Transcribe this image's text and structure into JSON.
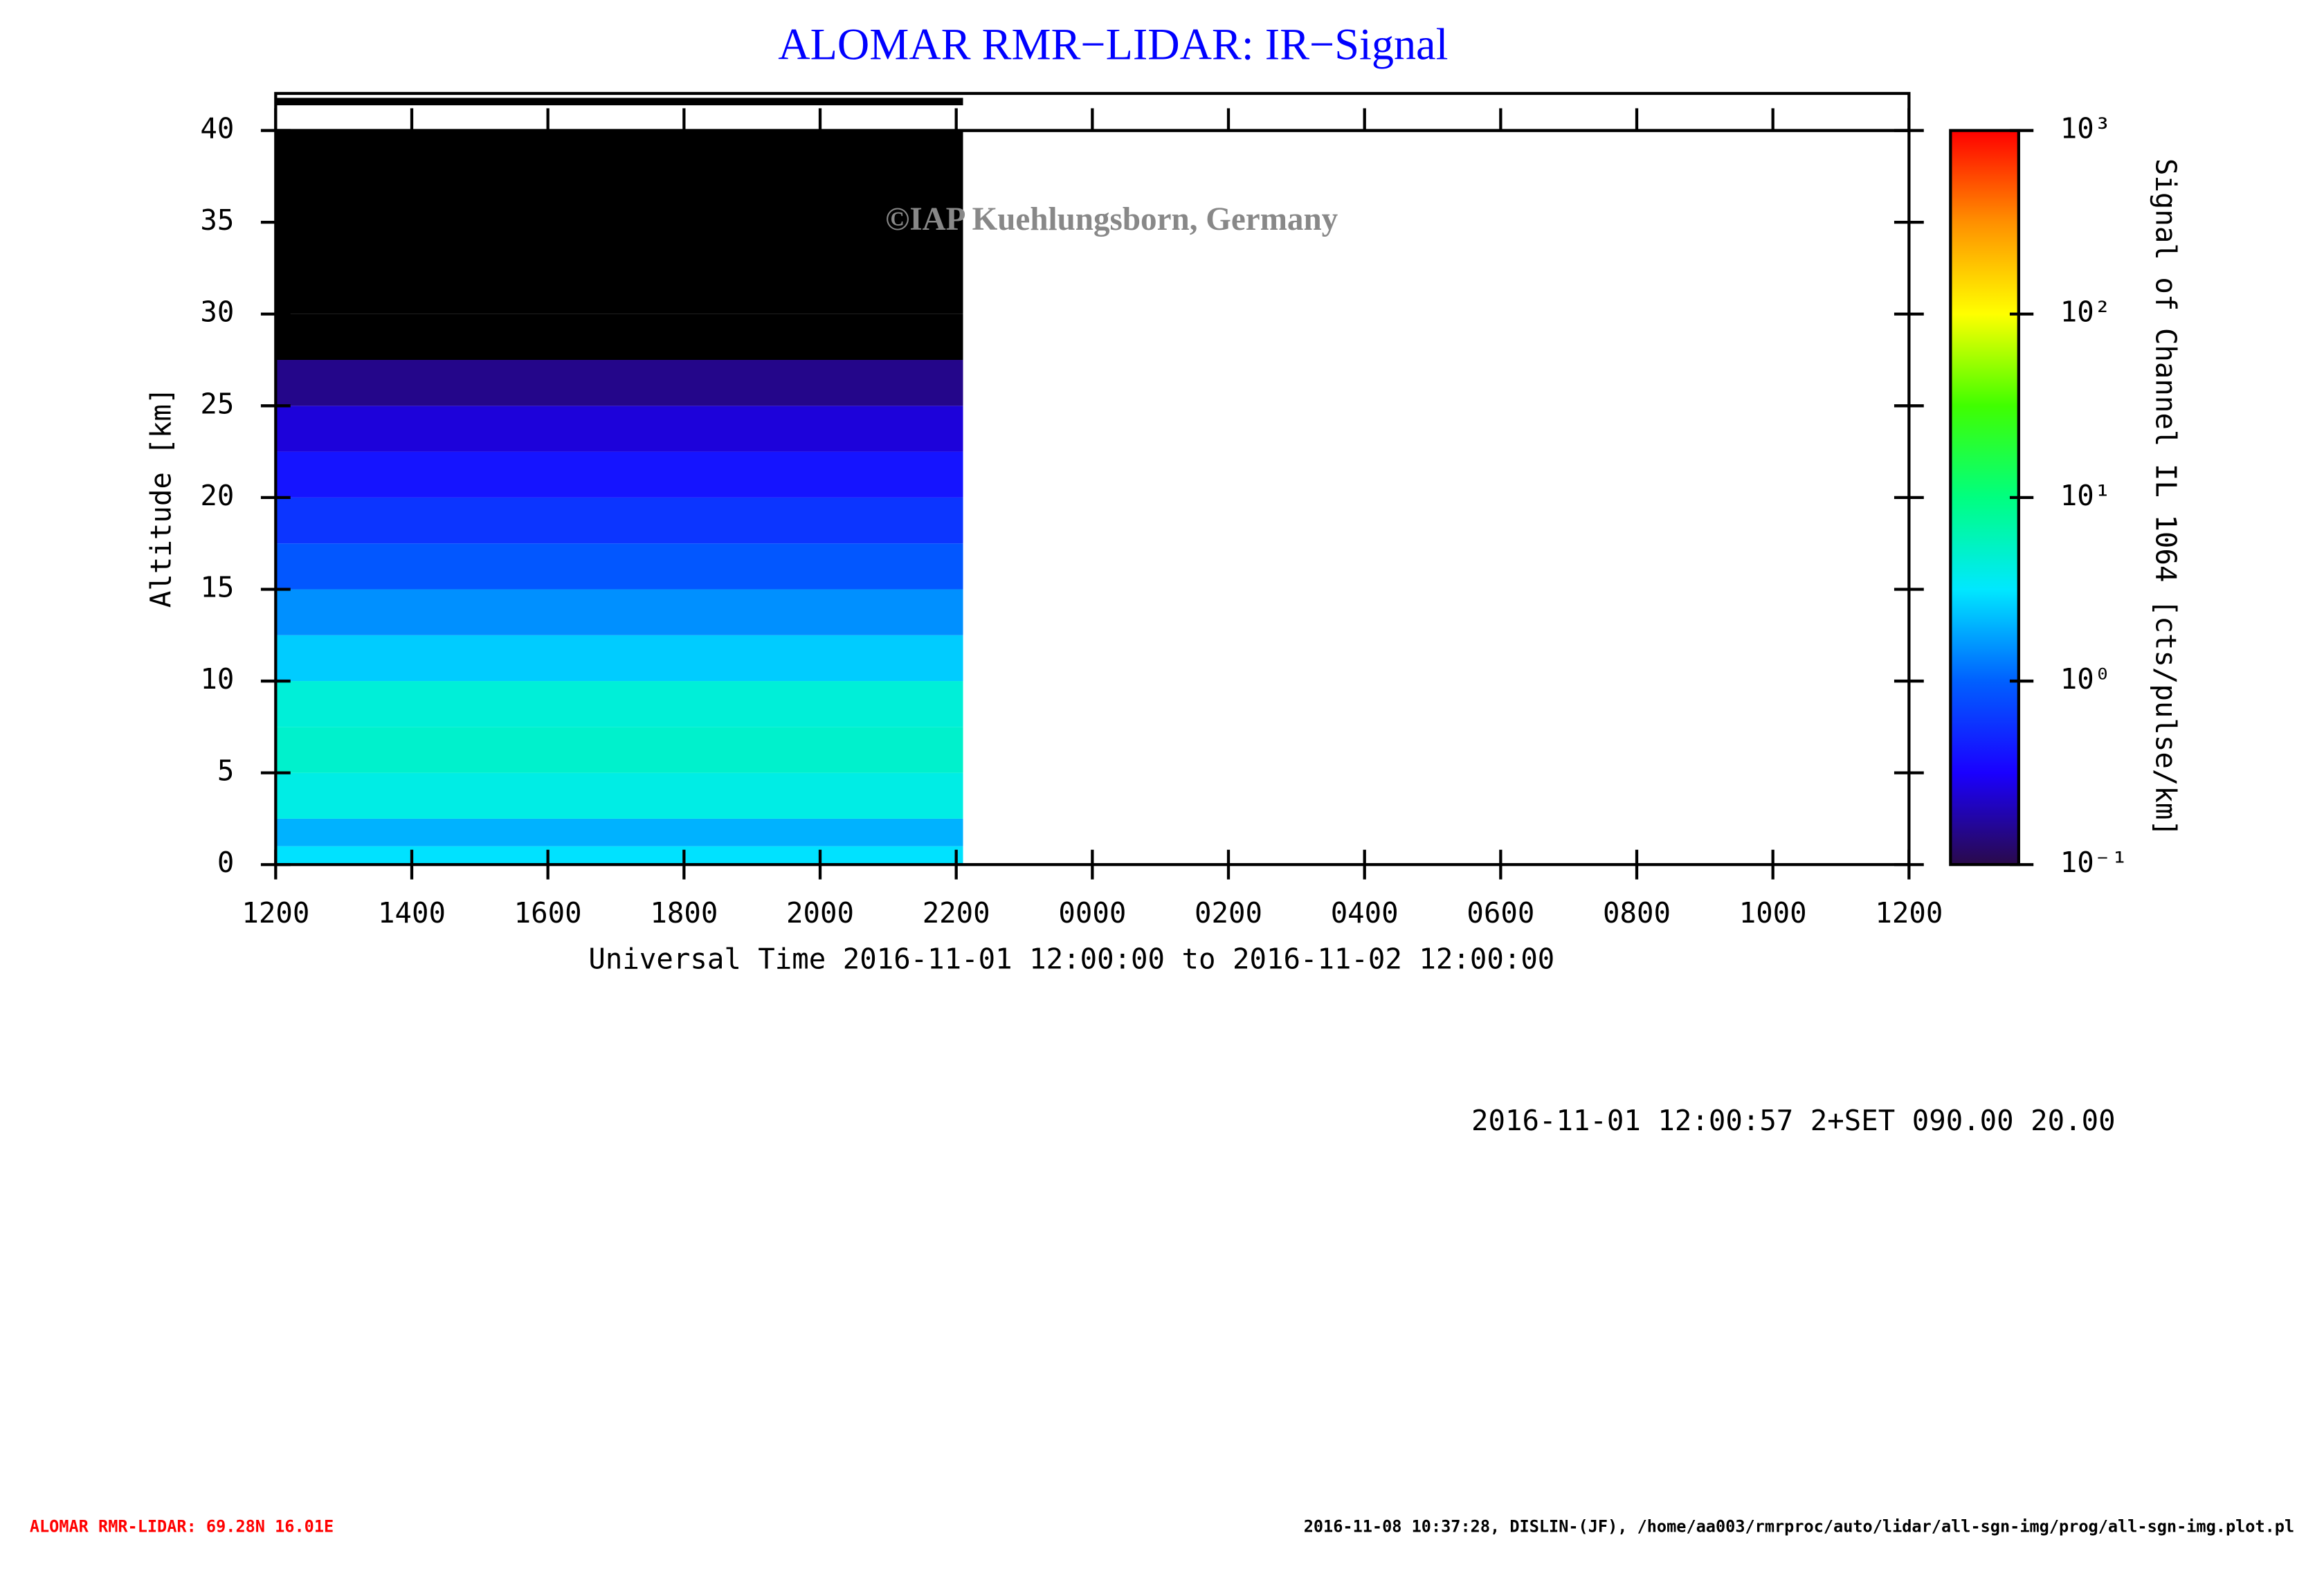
{
  "chart_data": {
    "type": "heatmap",
    "title": "ALOMAR RMR−LIDAR: IR−Signal",
    "watermark": "©IAP Kuehlungsborn, Germany",
    "x_label": "Universal Time 2016-11-01 12:00:00 to 2016-11-02 12:00:00",
    "y_label": "Altitude [km]",
    "colorbar_label": "Signal of Channel IL 1064 [cts/pulse/km]",
    "xlim": [
      12,
      36
    ],
    "xticks": [
      {
        "value": 12,
        "label": "1200"
      },
      {
        "value": 14,
        "label": "1400"
      },
      {
        "value": 16,
        "label": "1600"
      },
      {
        "value": 18,
        "label": "1800"
      },
      {
        "value": 20,
        "label": "2000"
      },
      {
        "value": 22,
        "label": "2200"
      },
      {
        "value": 24,
        "label": "0000"
      },
      {
        "value": 26,
        "label": "0200"
      },
      {
        "value": 28,
        "label": "0400"
      },
      {
        "value": 30,
        "label": "0600"
      },
      {
        "value": 32,
        "label": "0800"
      },
      {
        "value": 34,
        "label": "1000"
      },
      {
        "value": 36,
        "label": "1200"
      }
    ],
    "ylim": [
      0,
      40
    ],
    "yticks": [
      0,
      5,
      10,
      15,
      20,
      25,
      30,
      35,
      40
    ],
    "clim": [
      0.1,
      1000
    ],
    "cticks": [
      {
        "value": 0.1,
        "label": "10⁻¹"
      },
      {
        "value": 1,
        "label": "10⁰"
      },
      {
        "value": 10,
        "label": "10¹"
      },
      {
        "value": 100,
        "label": "10²"
      },
      {
        "value": 1000,
        "label": "10³"
      }
    ],
    "color_scale": "log",
    "colormap": [
      "#2a0a4a",
      "#1a00ff",
      "#0060ff",
      "#00e8ff",
      "#00ff80",
      "#40ff00",
      "#ffff00",
      "#ff9000",
      "#ff0000"
    ],
    "under_color": "#000000",
    "x_edges": [
      12,
      22.1
    ],
    "y_edges": [
      0,
      1,
      2.5,
      5,
      7.5,
      10,
      12.5,
      15,
      17.5,
      20,
      22.5,
      25,
      27.5,
      30,
      40
    ],
    "values": [
      3,
      2,
      4,
      5,
      4.5,
      2.5,
      1.5,
      0.9,
      0.6,
      0.4,
      0.25,
      0.15,
      0.08,
      0.02
    ],
    "info_line": "2016-11-01 12:00:57 2+SET 090.00 20.00",
    "footer_left": "ALOMAR RMR-LIDAR: 69.28N 16.01E",
    "footer_right": "2016-11-08 10:37:28, DISLIN-(JF), /home/aa003/rmrproc/auto/lidar/all-sgn-img/prog/all-sgn-img.plot.pl"
  }
}
